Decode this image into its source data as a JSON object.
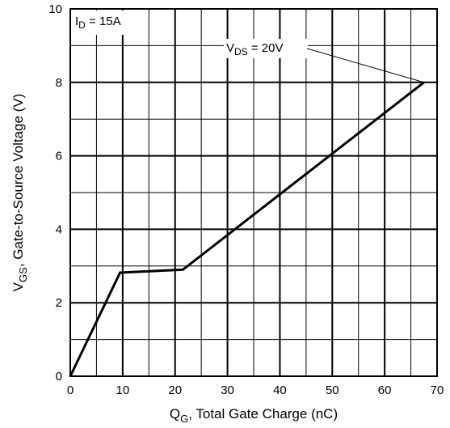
{
  "chart_data": {
    "type": "line",
    "title": "",
    "xlabel": {
      "main": "Q",
      "sub": "G",
      "rest": ", Total Gate Charge (nC)"
    },
    "ylabel": {
      "main": "V",
      "sub": "GS",
      "rest": ", Gate-to-Source Voltage (V)"
    },
    "xlim": [
      0,
      70
    ],
    "ylim": [
      0,
      10
    ],
    "x_ticks": [
      0,
      10,
      20,
      30,
      40,
      50,
      60,
      70
    ],
    "y_ticks": [
      0,
      2,
      4,
      6,
      8,
      10
    ],
    "grid": {
      "major": true,
      "minor": true,
      "x_minor_step": 5,
      "y_minor_step": 1
    },
    "series": [
      {
        "points": [
          {
            "x": 0,
            "y": 0
          },
          {
            "x": 9.5,
            "y": 2.82
          },
          {
            "x": 21.5,
            "y": 2.9
          },
          {
            "x": 67.5,
            "y": 8.0
          }
        ]
      }
    ],
    "annotations": {
      "current_label": {
        "main": "I",
        "sub": "D",
        "rest": " = 15A"
      },
      "vds_label": {
        "main": "V",
        "sub": "DS",
        "rest": " = 20V",
        "points_to": {
          "x": 67.5,
          "y": 8.0
        }
      }
    },
    "colors": {
      "line": "#000000",
      "grid": "#000000",
      "background": "#ffffff"
    }
  }
}
